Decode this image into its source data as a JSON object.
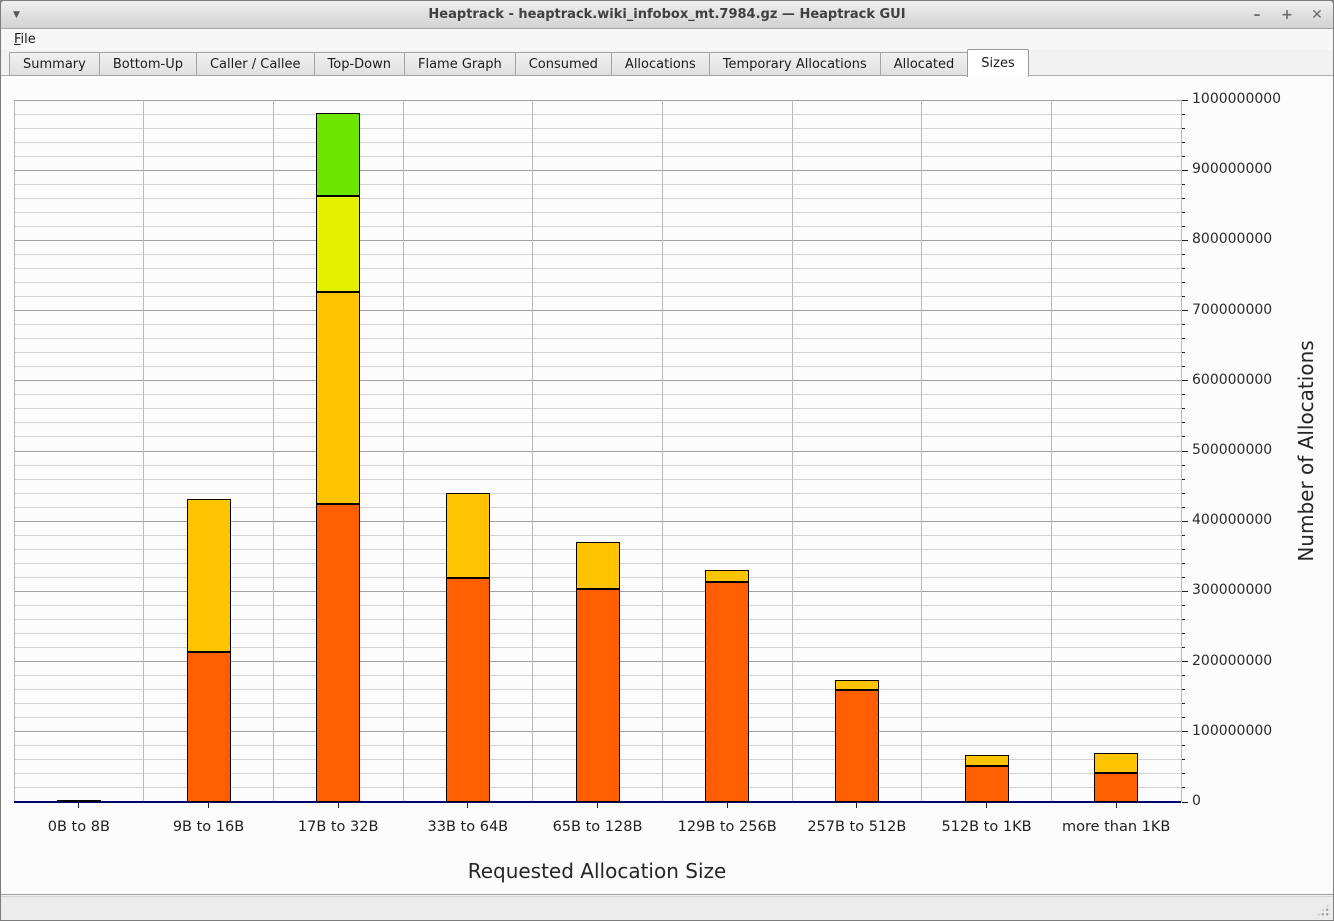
{
  "window": {
    "title": "Heaptrack - heaptrack.wiki_infobox_mt.7984.gz — Heaptrack GUI",
    "menu_arrow": "▼",
    "buttons": {
      "minimize": "–",
      "maximize": "+",
      "close": "✕"
    }
  },
  "menu": {
    "items": [
      {
        "label": "File",
        "accelerator": "F"
      }
    ]
  },
  "tabs": [
    {
      "label": "Summary",
      "active": false
    },
    {
      "label": "Bottom-Up",
      "active": false
    },
    {
      "label": "Caller / Callee",
      "active": false
    },
    {
      "label": "Top-Down",
      "active": false
    },
    {
      "label": "Flame Graph",
      "active": false
    },
    {
      "label": "Consumed",
      "active": false
    },
    {
      "label": "Allocations",
      "active": false
    },
    {
      "label": "Temporary Allocations",
      "active": false
    },
    {
      "label": "Allocated",
      "active": false
    },
    {
      "label": "Sizes",
      "active": true
    }
  ],
  "chart_data": {
    "type": "bar",
    "stacked": true,
    "title": "",
    "xlabel": "Requested Allocation Size",
    "ylabel": "Number of Allocations",
    "ylim": [
      0,
      1000000000
    ],
    "ytick_major": 100000000,
    "ytick_minor": 20000000,
    "grid": true,
    "legend": "none",
    "categories": [
      "0B to 8B",
      "9B to 16B",
      "17B to 32B",
      "33B to 64B",
      "65B to 128B",
      "129B to 256B",
      "257B to 512B",
      "512B to 1KB",
      "more than 1KB"
    ],
    "series": [
      {
        "name": "segment-1",
        "color": "#ff5f00",
        "values": [
          3000000,
          214000000,
          425000000,
          319000000,
          304000000,
          313000000,
          160000000,
          51000000,
          42000000
        ]
      },
      {
        "name": "segment-2",
        "color": "#ffc400",
        "values": [
          0,
          217000000,
          301000000,
          121000000,
          67000000,
          18000000,
          14000000,
          16000000,
          28000000
        ]
      },
      {
        "name": "segment-3",
        "color": "#e3f000",
        "values": [
          0,
          0,
          137000000,
          0,
          0,
          0,
          0,
          0,
          0
        ]
      },
      {
        "name": "segment-4",
        "color": "#6ce600",
        "values": [
          0,
          0,
          118000000,
          0,
          0,
          0,
          0,
          0,
          0
        ]
      }
    ],
    "colors": {
      "axis_line": "#00006e",
      "grid_minor": "#d2d2d2",
      "grid_major": "#9f9f9f",
      "grid_vertical": "#b9b9b9"
    }
  },
  "statusbar": {
    "text": ""
  }
}
